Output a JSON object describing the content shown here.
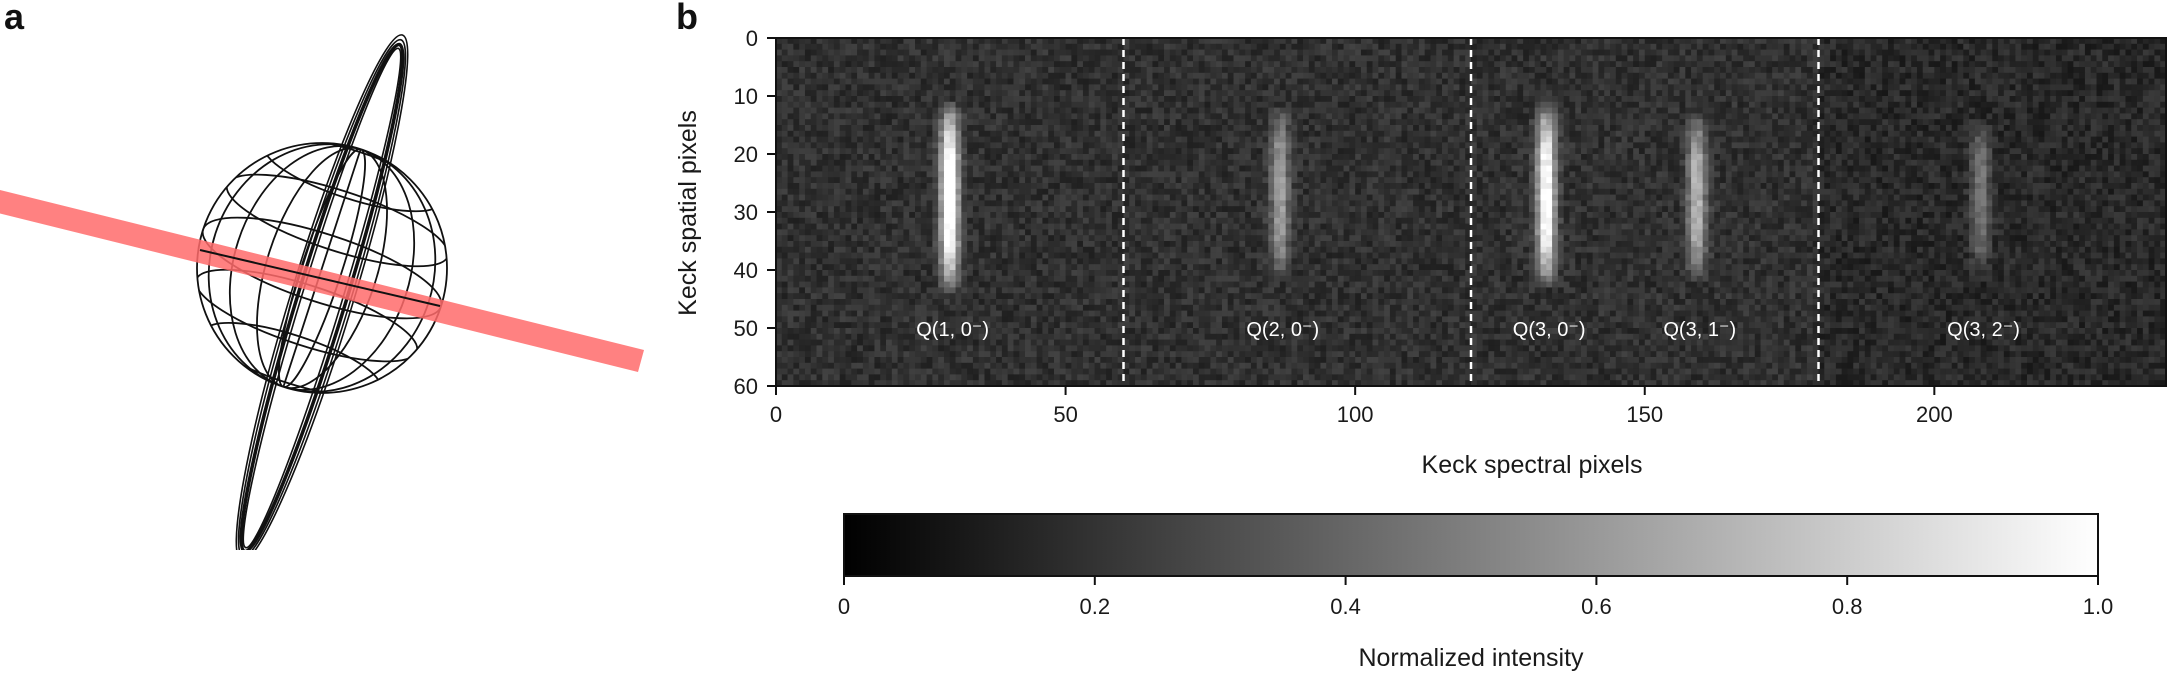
{
  "panels": {
    "a": "a",
    "b": "b"
  },
  "chart_data": {
    "type": "heatmap",
    "xlabel": "Keck spectral pixels",
    "ylabel": "Keck spatial pixels",
    "xlim": [
      0,
      240
    ],
    "ylim": [
      0,
      60
    ],
    "x_ticks": [
      0,
      50,
      100,
      150,
      200
    ],
    "y_ticks": [
      0,
      10,
      20,
      30,
      40,
      50,
      60
    ],
    "dividers_x": [
      60,
      120,
      180
    ],
    "emission_lines": [
      {
        "label": "Q(1, 0⁻)",
        "x": 30,
        "y_center": 27,
        "y_extent": [
          10,
          44
        ],
        "peak": 0.95
      },
      {
        "label": "Q(2, 0⁻)",
        "x": 87,
        "y_center": 28,
        "y_extent": [
          11,
          42
        ],
        "peak": 0.45
      },
      {
        "label": "Q(3, 0⁻)",
        "x": 133,
        "y_center": 27,
        "y_extent": [
          10,
          43
        ],
        "peak": 0.88
      },
      {
        "label": "Q(3, 1⁻)",
        "x": 159,
        "y_center": 27,
        "y_extent": [
          12,
          42
        ],
        "peak": 0.55
      },
      {
        "label": "Q(3, 2⁻)",
        "x": 208,
        "y_center": 28,
        "y_extent": [
          13,
          40
        ],
        "peak": 0.32
      }
    ],
    "label_y": 50,
    "colorbar": {
      "label": "Normalized intensity",
      "range": [
        0,
        1.0
      ],
      "ticks": [
        "0",
        "0.2",
        "0.4",
        "0.6",
        "0.8",
        "1.0"
      ]
    }
  }
}
